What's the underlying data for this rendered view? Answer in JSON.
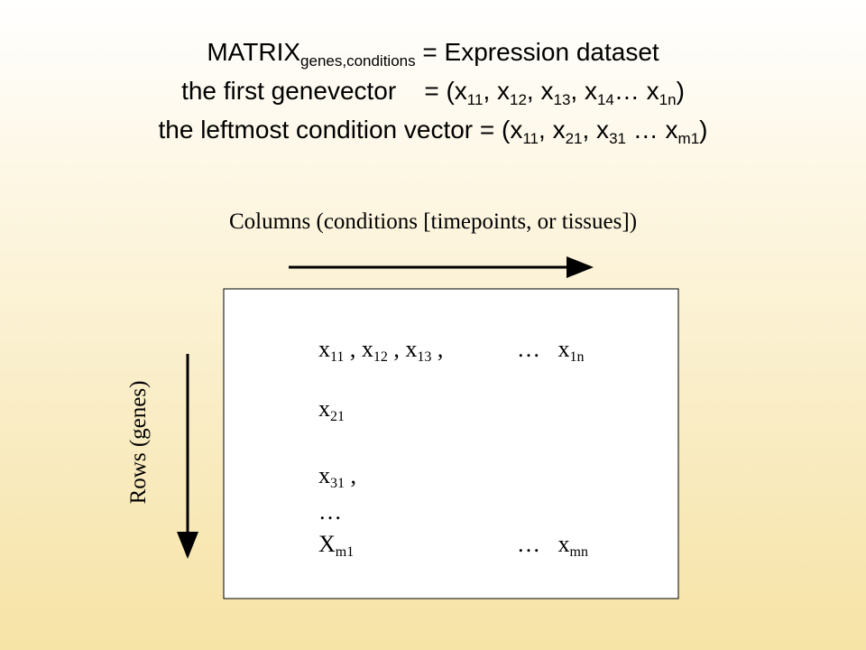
{
  "title": {
    "lines": [
      [
        {
          "text": "MATRIX",
          "sub": "genes,conditions"
        },
        {
          "text": " = Expression dataset"
        }
      ],
      [
        {
          "text": "the first genevector    = (x",
          "sub": "11"
        },
        {
          "text": ", x",
          "sub": "12"
        },
        {
          "text": ", x",
          "sub": "13"
        },
        {
          "text": ", x",
          "sub": "14"
        },
        {
          "text": "… x",
          "sub": "1n"
        },
        {
          "text": ")"
        }
      ],
      [
        {
          "text": "the leftmost condition vector = (x",
          "sub": "11"
        },
        {
          "text": ", x",
          "sub": "21"
        },
        {
          "text": ", x",
          "sub": "31"
        },
        {
          "text": " … x",
          "sub": "m1"
        },
        {
          "text": ")"
        }
      ]
    ]
  },
  "columns_label": "Columns (conditions [timepoints, or tissues])",
  "rows_label": "Rows (genes)",
  "matrix": {
    "rows": [
      [
        [
          {
            "text": "x",
            "sub": "11"
          },
          {
            "text": " , x",
            "sub": "12"
          },
          {
            "text": " , x",
            "sub": "13"
          },
          {
            "text": " ,"
          }
        ],
        [
          {
            "text": "…   x",
            "sub": "1n"
          }
        ]
      ],
      [
        [
          {
            "text": "x",
            "sub": "21"
          }
        ]
      ],
      [
        [
          {
            "text": "x",
            "sub": "31"
          },
          {
            "text": " ,"
          }
        ]
      ],
      [
        [
          {
            "text": "…"
          }
        ]
      ],
      [
        [
          {
            "text": "X",
            "sub": "m1"
          }
        ],
        [
          {
            "text": "…   x",
            "sub": "mn"
          }
        ]
      ]
    ]
  }
}
